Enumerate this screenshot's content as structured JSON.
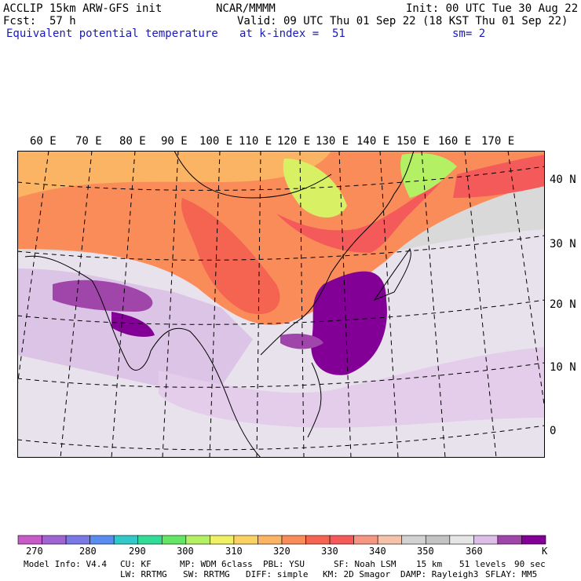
{
  "header": {
    "model": "ACCLIP 15km ARW-GFS init",
    "center": "NCAR/MMMM",
    "init": "Init: 00 UTC Tue 30 Aug 22",
    "fcst_label": "Fcst:",
    "fcst_value": "57 h",
    "valid": "Valid: 09 UTC Thu 01 Sep 22 (18 KST Thu 01 Sep 22)",
    "field": "Equivalent potential temperature",
    "level": "at k-index =  51",
    "smooth": "sm= 2"
  },
  "map": {
    "lon_labels": [
      "60 E",
      "70 E",
      "80 E",
      "90 E",
      "100 E",
      "110 E",
      "120 E",
      "130 E",
      "140 E",
      "150 E",
      "160 E",
      "170 E"
    ],
    "lat_labels": [
      "40 N",
      "30 N",
      "20 N",
      "10 N",
      "0"
    ]
  },
  "colorbar": {
    "colors": [
      "#c85ac8",
      "#a064d2",
      "#7878e6",
      "#5a8cf0",
      "#32c8c8",
      "#32dc96",
      "#64e664",
      "#b4f064",
      "#f0f064",
      "#fad264",
      "#fab464",
      "#fa8c5a",
      "#f56450",
      "#f55a5a",
      "#f59682",
      "#f5c3aa",
      "#d2d2d2",
      "#c3c3c3",
      "#e6e6e6",
      "#dcbee6",
      "#a046aa",
      "#820096"
    ],
    "tick_labels": [
      "270",
      "280",
      "290",
      "300",
      "310",
      "320",
      "330",
      "340",
      "350",
      "360"
    ],
    "unit": "K"
  },
  "footer": {
    "line1": [
      "Model Info: V4.4",
      "CU: KF",
      "MP: WDM 6class",
      "PBL: YSU",
      "SF: Noah LSM",
      "15 km",
      "51 levels",
      "90 sec"
    ],
    "line2": [
      "LW: RRTMG",
      "SW: RRTMG",
      "DIFF: simple",
      "KM: 2D Smagor",
      "DAMP: Rayleigh3",
      "SFLAY: MM5"
    ]
  }
}
